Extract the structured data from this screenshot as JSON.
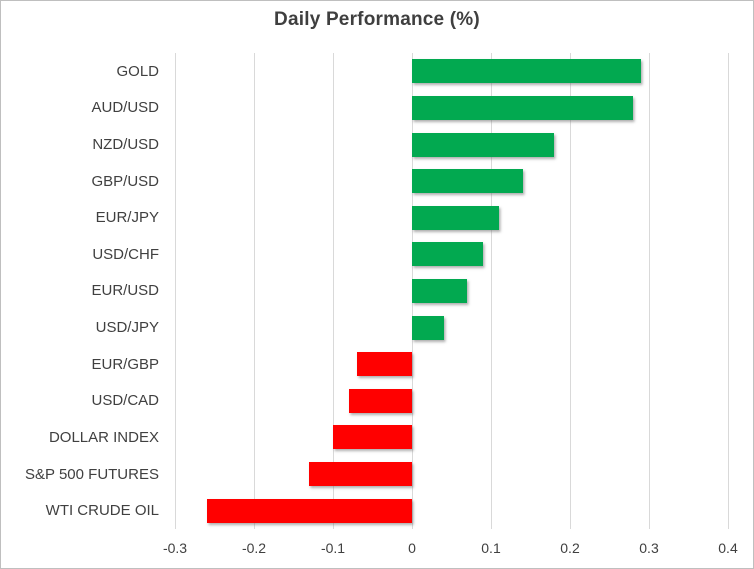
{
  "chart_data": {
    "type": "bar",
    "orientation": "horizontal",
    "title": "Daily Performance (%)",
    "categories": [
      "GOLD",
      "AUD/USD",
      "NZD/USD",
      "GBP/USD",
      "EUR/JPY",
      "USD/CHF",
      "EUR/USD",
      "USD/JPY",
      "EUR/GBP",
      "USD/CAD",
      "DOLLAR INDEX",
      "S&P 500 FUTURES",
      "WTI CRUDE OIL"
    ],
    "values": [
      0.29,
      0.28,
      0.18,
      0.14,
      0.11,
      0.09,
      0.07,
      0.04,
      -0.07,
      -0.08,
      -0.1,
      -0.13,
      -0.26
    ],
    "xlabel": "",
    "ylabel": "",
    "xlim": [
      -0.3,
      0.4
    ],
    "x_ticks": [
      -0.3,
      -0.2,
      -0.1,
      0,
      0.1,
      0.2,
      0.3,
      0.4
    ],
    "x_tick_labels": [
      "-0.3",
      "-0.2",
      "-0.1",
      "0",
      "0.1",
      "0.2",
      "0.3",
      "0.4"
    ],
    "grid": true,
    "legend": false,
    "colors": {
      "positive_bar": "#02A950",
      "negative_bar": "#FF0000",
      "gridline": "#D9D9D9",
      "text": "#404040",
      "title_text": "#3F3F3F",
      "chart_border": "#BFBFBF",
      "background": "#FFFFFF"
    }
  }
}
